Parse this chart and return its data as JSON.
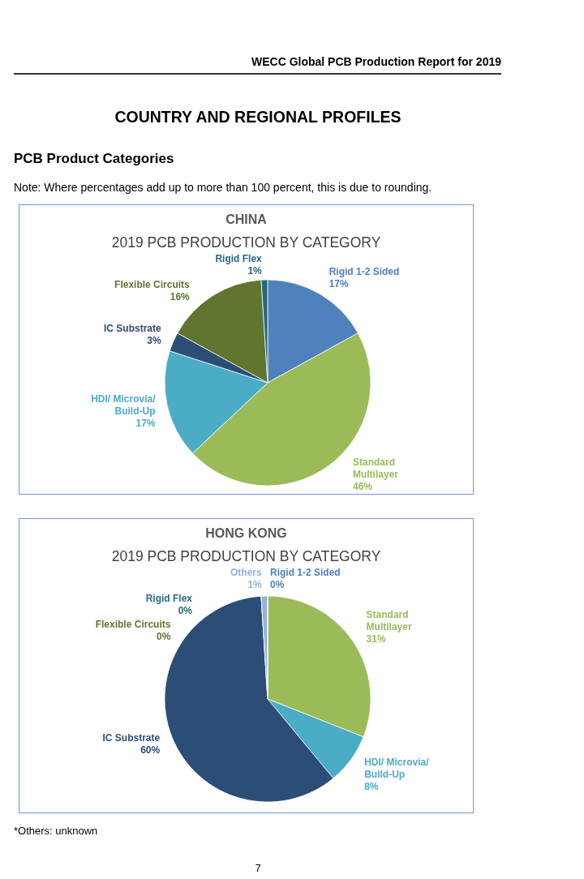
{
  "chart_data": [
    {
      "type": "pie",
      "title": "CHINA",
      "subtitle": "2019 PCB PRODUCTION BY CATEGORY",
      "categories": [
        "Rigid 1-2 Sided",
        "Standard Multilayer",
        "HDI/ Microvia/ Build-Up",
        "IC Substrate",
        "Flexible Circuits",
        "Rigid Flex"
      ],
      "values": [
        17,
        46,
        17,
        3,
        16,
        1
      ],
      "value_labels": [
        "17%",
        "46%",
        "17%",
        "3%",
        "16%",
        "1%"
      ],
      "colors": [
        "#4f81bd",
        "#9bbb59",
        "#4bacc6",
        "#2c4d75",
        "#5f7530",
        "#276a7c"
      ],
      "annotations": [
        "WECC Global PCB Production Report for 2019",
        "COUNTRY AND REGIONAL PROFILES",
        "PCB Product Categories",
        "Note: Where percentages add up to more than 100 percent, this is due to rounding."
      ]
    },
    {
      "type": "pie",
      "title": "HONG KONG",
      "subtitle": "2019 PCB PRODUCTION BY CATEGORY",
      "categories": [
        "Rigid 1-2 Sided",
        "Standard Multilayer",
        "HDI/ Microvia/ Build-Up",
        "IC Substrate",
        "Flexible Circuits",
        "Others",
        "Rigid Flex"
      ],
      "values": [
        0,
        31,
        8,
        60,
        0,
        1,
        0
      ],
      "value_labels": [
        "0%",
        "31%",
        "8%",
        "60%",
        "0%",
        "1%",
        "0%"
      ],
      "colors": [
        "#4f81bd",
        "#9bbb59",
        "#4bacc6",
        "#2c4d75",
        "#5f7530",
        "#95b3d7",
        "#276a7c"
      ],
      "annotations": [
        "*Others: unknown",
        "7"
      ]
    }
  ]
}
